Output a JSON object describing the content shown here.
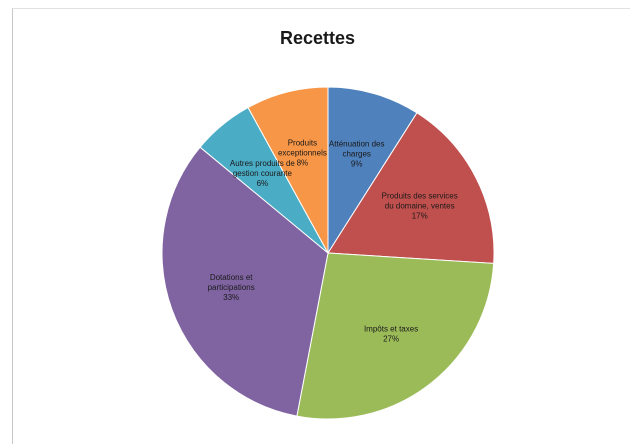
{
  "chart_data": {
    "type": "pie",
    "title": "Recettes",
    "slices": [
      {
        "label": [
          "Atténuation des",
          "charges"
        ],
        "percent_label": "9%",
        "value": 9,
        "color": "#4f81bd"
      },
      {
        "label": [
          "Produits des services",
          "du domaine, ventes"
        ],
        "percent_label": "17%",
        "value": 17,
        "color": "#c0504d"
      },
      {
        "label": [
          "Impôts et taxes"
        ],
        "percent_label": "27%",
        "value": 27,
        "color": "#9bbb59"
      },
      {
        "label": [
          "Dotations et",
          "participations"
        ],
        "percent_label": "33%",
        "value": 33,
        "color": "#8064a2"
      },
      {
        "label": [
          "Autres produits de",
          "gestion courante"
        ],
        "percent_label": "6%",
        "value": 6,
        "color": "#4bacc6"
      },
      {
        "label": [
          "Produits",
          "exceptionnels"
        ],
        "percent_label": "8%",
        "value": 8,
        "color": "#f79646"
      }
    ],
    "legend": "none"
  }
}
